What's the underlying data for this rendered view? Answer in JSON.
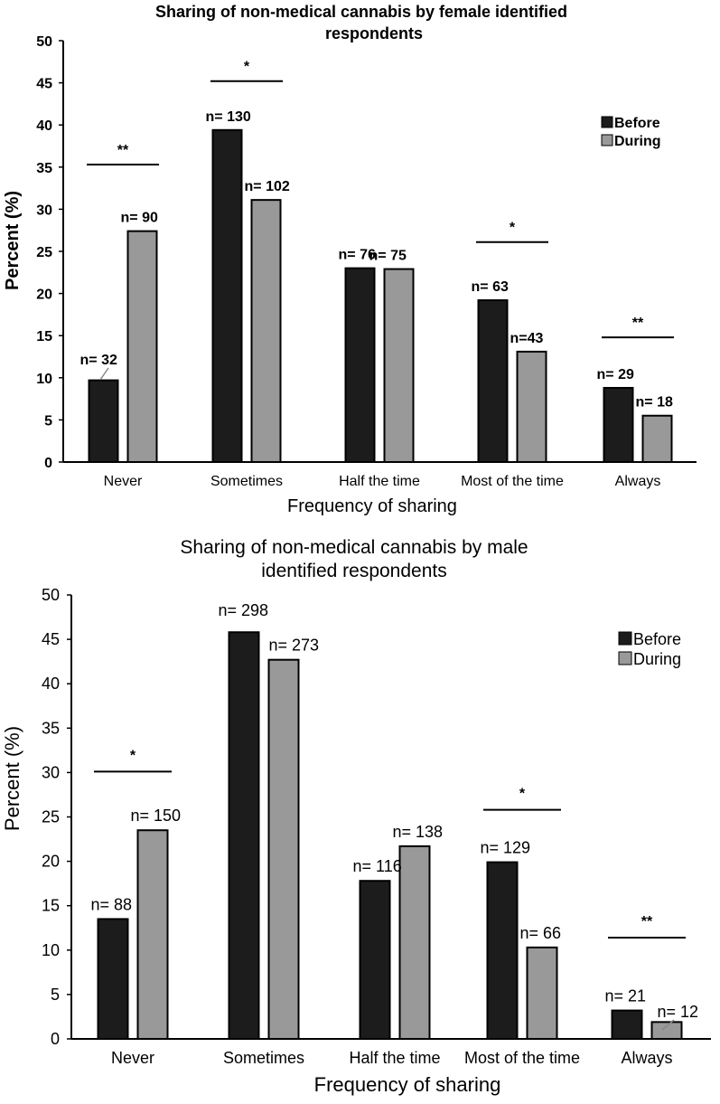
{
  "chart_data": [
    {
      "type": "bar",
      "title_lines": [
        "Sharing of non-medical cannabis by female identified",
        "respondents"
      ],
      "xlabel": "Frequency of sharing",
      "ylabel": "Percent (%)",
      "ylim": [
        0,
        50
      ],
      "yticks": [
        "0",
        "5",
        "10",
        "15",
        "20",
        "25",
        "30",
        "35",
        "40",
        "45",
        "50"
      ],
      "categories": [
        "Never",
        "Sometimes",
        "Half the time",
        "Most of the time",
        "Always"
      ],
      "series": [
        {
          "name": "Before",
          "color": "#1c1c1c",
          "values": [
            9.7,
            39.4,
            23.0,
            19.2,
            8.8
          ],
          "labels": [
            "n= 32",
            "n= 130",
            "n= 76",
            "n= 63",
            "n= 29"
          ]
        },
        {
          "name": "During",
          "color": "#999999",
          "values": [
            27.4,
            31.1,
            22.9,
            13.1,
            5.5
          ],
          "labels": [
            "n= 90",
            "n= 102",
            "n= 75",
            "n=43",
            "n= 18"
          ]
        }
      ],
      "significance": [
        {
          "category": "Never",
          "marker": "**",
          "level": 35.3
        },
        {
          "category": "Sometimes",
          "marker": "*",
          "level": 45.2
        },
        {
          "category": "Most of the time",
          "marker": "*",
          "level": 26.1
        },
        {
          "category": "Always",
          "marker": "**",
          "level": 14.8
        }
      ],
      "legend_position": "top-right"
    },
    {
      "type": "bar",
      "title_lines": [
        "Sharing of non-medical cannabis by male",
        "identified respondents"
      ],
      "xlabel": "Frequency of sharing",
      "ylabel": "Percent (%)",
      "ylim": [
        0,
        50
      ],
      "yticks": [
        "0",
        "5",
        "10",
        "15",
        "20",
        "25",
        "30",
        "35",
        "40",
        "45",
        "50"
      ],
      "categories": [
        "Never",
        "Sometimes",
        "Half the time",
        "Most of the time",
        "Always"
      ],
      "series": [
        {
          "name": "Before",
          "color": "#1c1c1c",
          "values": [
            13.5,
            45.8,
            17.8,
            19.9,
            3.2
          ],
          "labels": [
            "n= 88",
            "n= 298",
            "n= 116",
            "n= 129",
            "n= 21"
          ]
        },
        {
          "name": "During",
          "color": "#999999",
          "values": [
            23.5,
            42.7,
            21.7,
            10.3,
            1.9
          ],
          "labels": [
            "n= 150",
            "n= 273",
            "n= 138",
            "n= 66",
            "n= 12"
          ]
        }
      ],
      "significance": [
        {
          "category": "Never",
          "marker": "*",
          "level": 30.1
        },
        {
          "category": "Most of the time",
          "marker": "*",
          "level": 25.8
        },
        {
          "category": "Always",
          "marker": "**",
          "level": 11.4
        }
      ],
      "legend_position": "top-right"
    }
  ]
}
